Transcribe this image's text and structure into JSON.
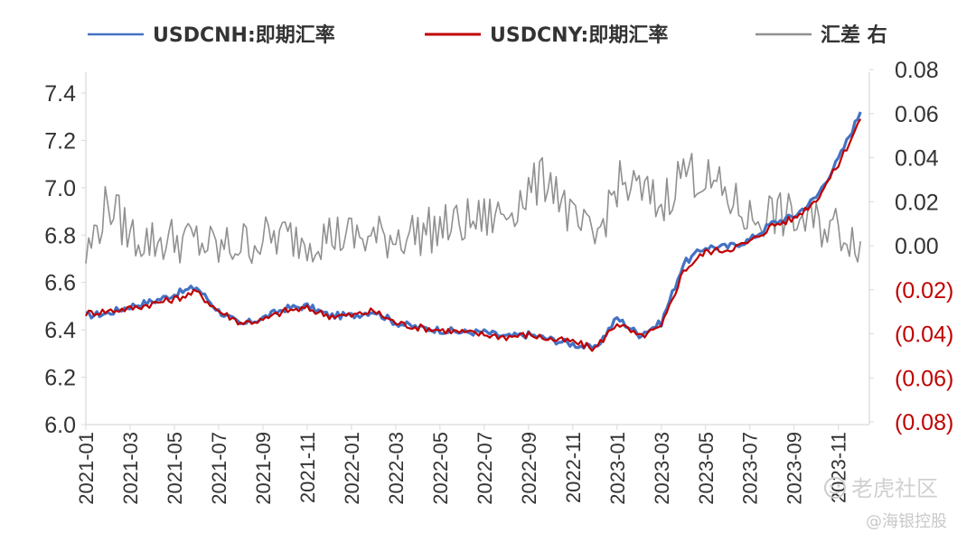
{
  "chart_data": {
    "type": "line",
    "title": "",
    "xlabel": "",
    "ylabel": "",
    "ylim": [
      6.0,
      7.45
    ],
    "y2lim": [
      -0.08,
      0.08
    ],
    "yticks": [
      "6.0",
      "6.2",
      "6.4",
      "6.6",
      "6.8",
      "7.0",
      "7.2",
      "7.4"
    ],
    "y2ticks": [
      {
        "label": "0.08",
        "value": 0.08,
        "color": "#333333"
      },
      {
        "label": "0.06",
        "value": 0.06,
        "color": "#333333"
      },
      {
        "label": "0.04",
        "value": 0.04,
        "color": "#333333"
      },
      {
        "label": "0.02",
        "value": 0.02,
        "color": "#333333"
      },
      {
        "label": "0.00",
        "value": 0.0,
        "color": "#333333"
      },
      {
        "label": "(0.02)",
        "value": -0.02,
        "color": "#c00000"
      },
      {
        "label": "(0.04)",
        "value": -0.04,
        "color": "#c00000"
      },
      {
        "label": "(0.06)",
        "value": -0.06,
        "color": "#c00000"
      },
      {
        "label": "(0.08)",
        "value": -0.08,
        "color": "#c00000"
      }
    ],
    "x_ticks": [
      "2021-01",
      "2021-03",
      "2021-05",
      "2021-07",
      "2021-09",
      "2021-11",
      "2022-01",
      "2022-03",
      "2022-05",
      "2022-07",
      "2022-09",
      "2022-11",
      "2023-01",
      "2023-03",
      "2023-05",
      "2023-07",
      "2023-09",
      "2023-11"
    ],
    "legend_position": "top",
    "grid": false,
    "series": [
      {
        "name": "USDCNH:即期汇率",
        "color": "#4472c4",
        "axis": "left",
        "x": [
          0,
          1,
          2,
          3,
          4,
          5,
          6,
          7,
          8,
          9,
          10,
          11,
          12,
          13,
          14,
          15,
          16,
          17,
          18,
          19,
          20,
          21,
          22,
          23,
          24,
          25,
          26,
          27,
          28,
          29,
          30,
          31,
          32,
          33,
          34,
          35
        ],
        "values": [
          6.46,
          6.47,
          6.5,
          6.52,
          6.55,
          6.58,
          6.48,
          6.42,
          6.45,
          6.49,
          6.5,
          6.46,
          6.46,
          6.48,
          6.43,
          6.41,
          6.4,
          6.39,
          6.39,
          6.37,
          6.38,
          6.36,
          6.34,
          6.32,
          6.45,
          6.38,
          6.43,
          6.68,
          6.75,
          6.75,
          6.78,
          6.85,
          6.88,
          6.96,
          7.12,
          7.32
        ]
      },
      {
        "name": "USDCNY:即期汇率",
        "color": "#c00000",
        "axis": "left",
        "x": [
          0,
          1,
          2,
          3,
          4,
          5,
          6,
          7,
          8,
          9,
          10,
          11,
          12,
          13,
          14,
          15,
          16,
          17,
          18,
          19,
          20,
          21,
          22,
          23,
          24,
          25,
          26,
          27,
          28,
          29,
          30,
          31,
          32,
          33,
          34,
          35
        ],
        "values": [
          6.47,
          6.48,
          6.49,
          6.51,
          6.53,
          6.56,
          6.48,
          6.43,
          6.44,
          6.48,
          6.49,
          6.46,
          6.46,
          6.48,
          6.43,
          6.41,
          6.4,
          6.39,
          6.38,
          6.37,
          6.38,
          6.36,
          6.35,
          6.32,
          6.43,
          6.37,
          6.41,
          6.65,
          6.73,
          6.74,
          6.77,
          6.84,
          6.87,
          6.95,
          7.1,
          7.29
        ]
      },
      {
        "name": "汇差 右",
        "color": "#909090",
        "axis": "right",
        "x": [
          0,
          1,
          2,
          3,
          4,
          5,
          6,
          7,
          8,
          9,
          10,
          11,
          12,
          13,
          14,
          15,
          16,
          17,
          18,
          19,
          20,
          21,
          22,
          23,
          24,
          25,
          26,
          27,
          28,
          29,
          30,
          31,
          32,
          33,
          34,
          35
        ],
        "values": [
          -0.005,
          0.02,
          0.005,
          0.002,
          0.003,
          0.002,
          -0.002,
          0.001,
          0.003,
          0.004,
          0.003,
          0.005,
          0.004,
          0.003,
          0.005,
          0.006,
          0.008,
          0.01,
          0.012,
          0.015,
          0.025,
          0.032,
          0.01,
          0.002,
          0.028,
          0.025,
          0.018,
          0.035,
          0.03,
          0.022,
          0.012,
          0.015,
          0.012,
          0.01,
          0.008,
          0.002
        ]
      }
    ]
  },
  "legend": [
    {
      "label": "USDCNH:即期汇率",
      "color": "#4472c4"
    },
    {
      "label": "USDCNY:即期汇率",
      "color": "#c00000"
    },
    {
      "label": "汇差 右",
      "color": "#909090"
    }
  ],
  "watermark": {
    "brand": "老虎社区",
    "author": "@海银控股"
  }
}
